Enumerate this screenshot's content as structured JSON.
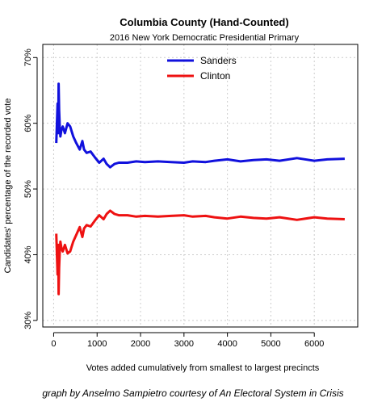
{
  "chart_data": {
    "type": "line",
    "title": "Columbia County (Hand-Counted)",
    "subtitle": "2016 New York Democratic Presidential Primary",
    "xlabel": "Votes added cumulatively from smallest to largest precincts",
    "ylabel": "Candidates' percentage of the recorded vote",
    "xlim": [
      -250,
      7000
    ],
    "ylim": [
      29,
      72
    ],
    "xticks": [
      0,
      1000,
      2000,
      3000,
      4000,
      5000,
      6000
    ],
    "xtick_labels": [
      "0",
      "1000",
      "2000",
      "3000",
      "4000",
      "5000",
      "6000"
    ],
    "yticks": [
      30,
      40,
      50,
      60,
      70
    ],
    "ytick_labels": [
      "30%",
      "40%",
      "50%",
      "60%",
      "70%"
    ],
    "grid": true,
    "legend_position": "top",
    "series": [
      {
        "name": "Sanders",
        "color": "#1111dd",
        "x": [
          60,
          75,
          90,
          105,
          115,
          125,
          140,
          155,
          180,
          210,
          260,
          320,
          380,
          450,
          520,
          600,
          660,
          700,
          760,
          850,
          950,
          1050,
          1150,
          1220,
          1300,
          1400,
          1500,
          1700,
          1900,
          2100,
          2400,
          2700,
          3000,
          3200,
          3500,
          3700,
          4000,
          4300,
          4600,
          4900,
          5200,
          5600,
          6000,
          6300,
          6700
        ],
        "y": [
          57.0,
          60.0,
          63.0,
          58.5,
          66.0,
          62.0,
          59.5,
          58.0,
          59.0,
          59.5,
          58.5,
          60.0,
          59.5,
          58.0,
          57.0,
          56.0,
          57.3,
          56.0,
          55.5,
          55.7,
          54.8,
          54.0,
          54.6,
          53.8,
          53.3,
          53.8,
          54.0,
          54.0,
          54.2,
          54.1,
          54.2,
          54.1,
          54.0,
          54.2,
          54.1,
          54.3,
          54.5,
          54.2,
          54.4,
          54.5,
          54.3,
          54.7,
          54.3,
          54.5,
          54.6
        ]
      },
      {
        "name": "Clinton",
        "color": "#ee1111",
        "x": [
          60,
          75,
          90,
          105,
          115,
          125,
          140,
          155,
          180,
          210,
          260,
          320,
          380,
          450,
          520,
          600,
          660,
          700,
          760,
          850,
          950,
          1050,
          1150,
          1220,
          1300,
          1400,
          1500,
          1700,
          1900,
          2100,
          2400,
          2700,
          3000,
          3200,
          3500,
          3700,
          4000,
          4300,
          4600,
          4900,
          5200,
          5600,
          6000,
          6300,
          6700
        ],
        "y": [
          43.2,
          40.0,
          37.0,
          41.5,
          34.0,
          38.0,
          40.5,
          42.0,
          41.0,
          40.5,
          41.5,
          40.2,
          40.5,
          42.0,
          43.0,
          44.2,
          42.7,
          44.0,
          44.5,
          44.3,
          45.2,
          46.0,
          45.4,
          46.2,
          46.7,
          46.2,
          46.0,
          46.0,
          45.8,
          45.9,
          45.8,
          45.9,
          46.0,
          45.8,
          45.9,
          45.7,
          45.5,
          45.8,
          45.6,
          45.5,
          45.7,
          45.3,
          45.7,
          45.5,
          45.4
        ]
      }
    ]
  },
  "caption": "graph by Anselmo Sampietro courtesy of An Electoral System in Crisis"
}
